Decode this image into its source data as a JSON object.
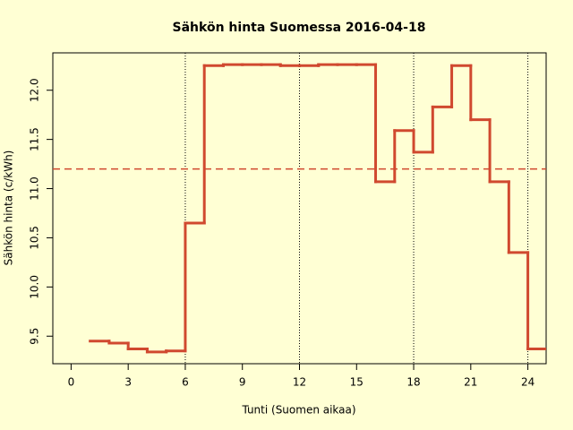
{
  "chart_data": {
    "type": "step",
    "title": "Sähkön hinta Suomessa 2016-04-18",
    "x_label": "Tunti (Suomen aikaa)",
    "y_label": "Sähkön hinta (c/kWh)",
    "x": [
      1,
      2,
      3,
      4,
      5,
      6,
      7,
      8,
      9,
      10,
      11,
      12,
      13,
      14,
      15,
      16,
      17,
      18,
      19,
      20,
      21,
      22,
      23,
      24
    ],
    "series": [
      {
        "name": "Hinta",
        "color": "#d0492f",
        "values": [
          9.45,
          9.43,
          9.37,
          9.34,
          9.35,
          10.65,
          12.25,
          12.26,
          12.26,
          12.26,
          12.25,
          12.25,
          12.26,
          12.26,
          12.26,
          11.07,
          11.59,
          11.37,
          11.83,
          12.25,
          11.7,
          11.07,
          10.35,
          9.37
        ]
      }
    ],
    "mean_line": 11.2,
    "vlines": [
      6,
      12,
      18,
      24
    ],
    "xlim": [
      -0.96,
      24.96
    ],
    "ylim": [
      9.22,
      12.38
    ],
    "xticks": [
      0,
      3,
      6,
      9,
      12,
      15,
      18,
      21,
      24
    ],
    "yticks": [
      {
        "value": 9.5,
        "label": "9.5"
      },
      {
        "value": 10,
        "label": "10.0"
      },
      {
        "value": 10.5,
        "label": "10.5"
      },
      {
        "value": 11,
        "label": "11.0"
      },
      {
        "value": 11.5,
        "label": "11.5"
      },
      {
        "value": 12,
        "label": "12.0"
      }
    ]
  }
}
